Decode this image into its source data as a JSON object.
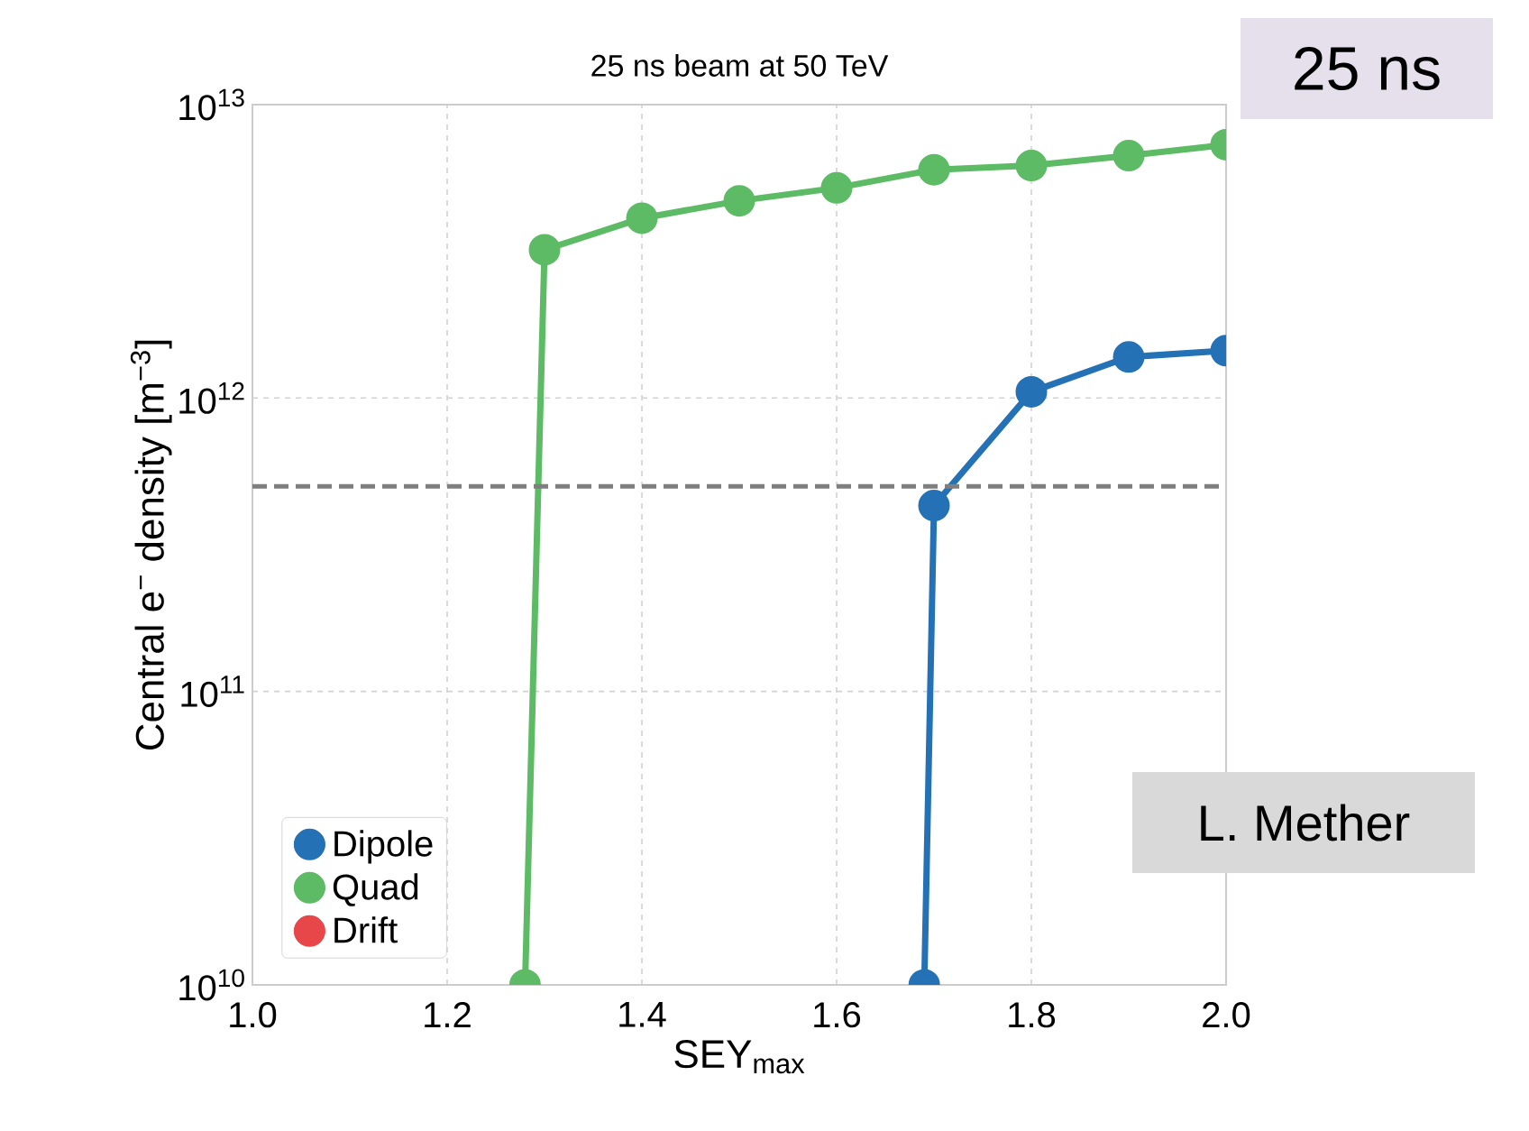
{
  "chart_data": {
    "type": "line",
    "title": "25 ns beam at 50 TeV",
    "xlabel": "SEY$_{max}$",
    "ylabel": "Central e$^{−}$ density [m$^{−3}$]",
    "series": [
      {
        "name": "Dipole",
        "color": "#2471b5",
        "x": [
          1.69,
          1.7,
          1.8,
          1.9,
          2.0
        ],
        "values": [
          10000000000.0,
          430000000000.0,
          1050000000000.0,
          1380000000000.0,
          1450000000000.0
        ]
      },
      {
        "name": "Quad",
        "color": "#5cbb64",
        "x": [
          1.28,
          1.3,
          1.4,
          1.5,
          1.6,
          1.7,
          1.8,
          1.9,
          2.0
        ],
        "values": [
          10000000000.0,
          3200000000000.0,
          4100000000000.0,
          4700000000000.0,
          5200000000000.0,
          6000000000000.0,
          6200000000000.0,
          6700000000000.0,
          7300000000000.0
        ]
      },
      {
        "name": "Drift",
        "color": "#e8474a"
      }
    ],
    "log": "y",
    "xlim": [
      1.0,
      2.0
    ],
    "xticks": [
      {
        "value": 1.0,
        "label": "1.0"
      },
      {
        "value": 1.2,
        "label": "1.2"
      },
      {
        "value": 1.4,
        "label": "1.4"
      },
      {
        "value": 1.6,
        "label": "1.6"
      },
      {
        "value": 1.8,
        "label": "1.8"
      },
      {
        "value": 2.0,
        "label": "2.0"
      }
    ],
    "ylim": [
      10000000000.0,
      10000000000000.0
    ],
    "yticks": [
      {
        "value": 10000000000.0,
        "label": "10$^{10}$"
      },
      {
        "value": 100000000000.0,
        "label": "10$^{11}$"
      },
      {
        "value": 1000000000000.0,
        "label": "10$^{12}$"
      },
      {
        "value": 10000000000000.0,
        "label": "10$^{13}$"
      }
    ],
    "ref_lines": [
      {
        "axis": "y",
        "value": 500000000000.0,
        "color": "#7f7f7f",
        "line_style": "dashed"
      }
    ],
    "grid": true,
    "legend": "bottom left",
    "marker": "circle",
    "line_style": "solid",
    "annotations": [
      "25 ns",
      "L. Mether"
    ]
  }
}
